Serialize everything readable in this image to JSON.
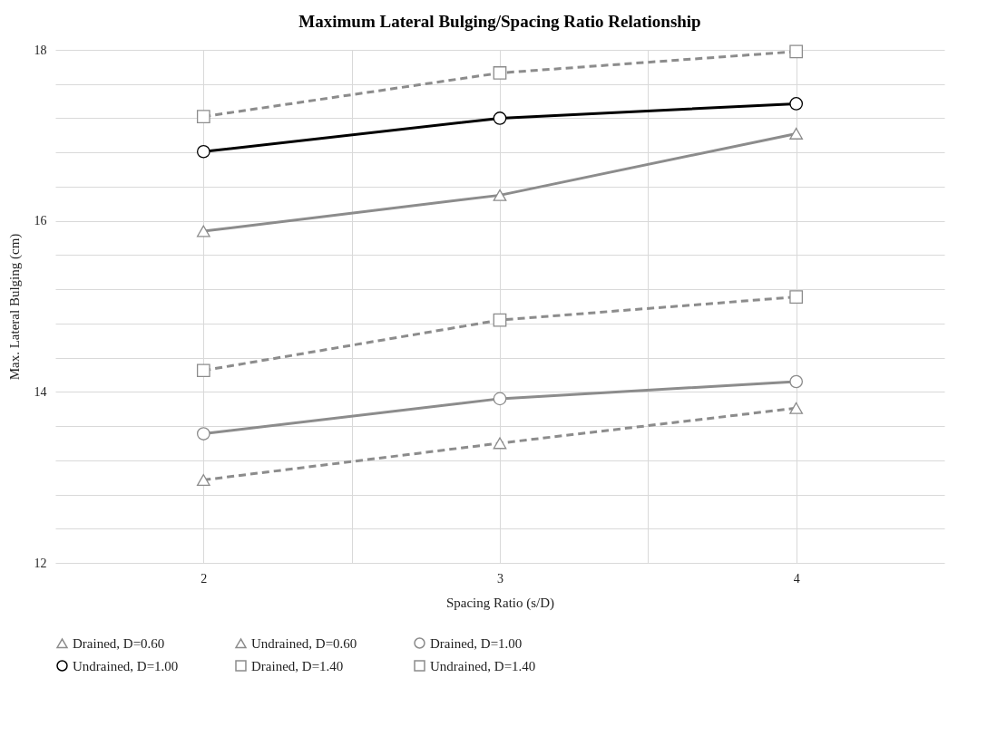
{
  "chart_data": {
    "type": "line",
    "title": "Maximum Lateral Bulging/Spacing Ratio Relationship",
    "xlabel": "Spacing Ratio (s/D)",
    "ylabel": "Max. Lateral Bulging (cm)",
    "x": [
      2,
      3,
      4
    ],
    "xlim": [
      1.5,
      4.5
    ],
    "xticks": [
      2,
      {
        "value": 2.5,
        "label": null
      },
      3,
      {
        "value": 3.5,
        "label": null
      },
      4
    ],
    "ylim": [
      12,
      18
    ],
    "yticks": [
      12,
      {
        "value": 12.4,
        "label": null
      },
      {
        "value": 12.8,
        "label": null
      },
      {
        "value": 13.2,
        "label": null
      },
      {
        "value": 13.6,
        "label": null
      },
      14,
      {
        "value": 14.4,
        "label": null
      },
      {
        "value": 14.8,
        "label": null
      },
      {
        "value": 15.2,
        "label": null
      },
      {
        "value": 15.6,
        "label": null
      },
      16,
      {
        "value": 16.4,
        "label": null
      },
      {
        "value": 16.8,
        "label": null
      },
      {
        "value": 17.2,
        "label": null
      },
      {
        "value": 17.6,
        "label": null
      },
      18
    ],
    "grid": true,
    "legend": "bottom",
    "series": [
      {
        "name": "Drained, D=0.60",
        "color": "#8c8c8c",
        "marker": "triangle",
        "line_style": "dashed",
        "values": [
          12.97,
          13.4,
          13.81
        ]
      },
      {
        "name": "Undrained, D=0.60",
        "color": "#8c8c8c",
        "marker": "triangle",
        "line_style": "solid",
        "values": [
          15.88,
          16.3,
          17.02
        ]
      },
      {
        "name": "Drained, D=1.00",
        "color": "#8c8c8c",
        "marker": "circle",
        "line_style": "solid",
        "values": [
          13.51,
          13.92,
          14.12
        ]
      },
      {
        "name": "Undrained, D=1.00",
        "color": "#000000",
        "marker": "circle",
        "line_style": "solid",
        "values": [
          16.81,
          17.2,
          17.37
        ]
      },
      {
        "name": "Drained, D=1.40",
        "color": "#8c8c8c",
        "marker": "square",
        "line_style": "dashed",
        "values": [
          14.25,
          14.84,
          15.11
        ]
      },
      {
        "name": "Undrained, D=1.40",
        "color": "#8c8c8c",
        "marker": "square",
        "line_style": "dashed",
        "values": [
          17.22,
          17.73,
          17.98
        ]
      }
    ]
  }
}
